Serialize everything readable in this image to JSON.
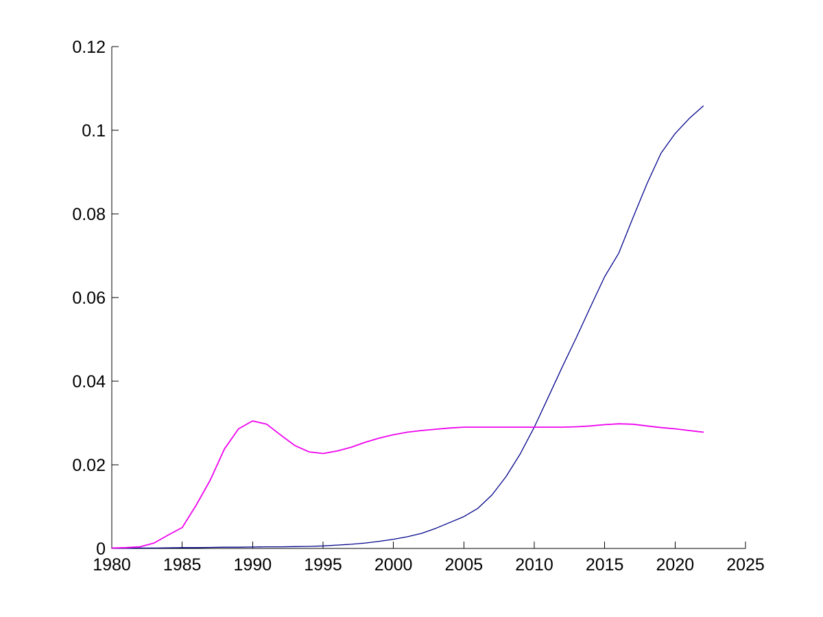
{
  "figure": {
    "background": "#ffffff",
    "axis_color": "#000000",
    "title": ""
  },
  "chart_data": {
    "type": "line",
    "title": "",
    "xlabel": "",
    "ylabel": "",
    "xlim": [
      1980,
      2025
    ],
    "ylim": [
      0,
      0.12
    ],
    "grid": false,
    "legend": "none",
    "x_ticks": [
      1980,
      1985,
      1990,
      1995,
      2000,
      2005,
      2010,
      2015,
      2020,
      2025
    ],
    "x_tick_labels": [
      "1980",
      "1985",
      "1990",
      "1995",
      "2000",
      "2005",
      "2010",
      "2015",
      "2020",
      "2025"
    ],
    "y_ticks": [
      0,
      0.02,
      0.04,
      0.06,
      0.08,
      0.1,
      0.12
    ],
    "y_tick_labels": [
      "0",
      "0.02",
      "0.04",
      "0.06",
      "0.08",
      "0.1",
      "0.12"
    ],
    "x": [
      1980,
      1981,
      1982,
      1983,
      1984,
      1985,
      1986,
      1987,
      1988,
      1989,
      1990,
      1991,
      1992,
      1993,
      1994,
      1995,
      1996,
      1997,
      1998,
      1999,
      2000,
      2001,
      2002,
      2003,
      2004,
      2005,
      2006,
      2007,
      2008,
      2009,
      2010,
      2011,
      2012,
      2013,
      2014,
      2015,
      2016,
      2017,
      2018,
      2019,
      2020,
      2021,
      2022
    ],
    "series": [
      {
        "name": "dark-blue-series",
        "color": "#00008B",
        "stroke_width": 1.3,
        "values": [
          5e-05,
          5e-05,
          0.0001,
          0.0001,
          0.00015,
          0.0002,
          0.0002,
          0.00025,
          0.0003,
          0.0003,
          0.00035,
          0.0004,
          0.0004,
          0.00045,
          0.0005,
          0.0006,
          0.0008,
          0.001,
          0.0013,
          0.0017,
          0.0022,
          0.0028,
          0.0036,
          0.0048,
          0.0062,
          0.0076,
          0.0096,
          0.0128,
          0.0172,
          0.0226,
          0.029,
          0.0362,
          0.0435,
          0.0505,
          0.0578,
          0.065,
          0.0706,
          0.079,
          0.0872,
          0.0945,
          0.0992,
          0.1028,
          0.1058
        ]
      },
      {
        "name": "magenta-series",
        "color": "#EE00EE",
        "stroke_width": 1.8,
        "values": [
          0.0001,
          0.0002,
          0.0004,
          0.0013,
          0.0032,
          0.005,
          0.0104,
          0.0164,
          0.0238,
          0.0286,
          0.0305,
          0.0297,
          0.0271,
          0.0246,
          0.0231,
          0.0227,
          0.0233,
          0.0242,
          0.0254,
          0.0264,
          0.0272,
          0.0278,
          0.0282,
          0.0285,
          0.0288,
          0.029,
          0.029,
          0.029,
          0.029,
          0.029,
          0.029,
          0.029,
          0.029,
          0.0291,
          0.0293,
          0.0296,
          0.0298,
          0.0297,
          0.0293,
          0.0289,
          0.0286,
          0.0282,
          0.0278
        ]
      }
    ]
  }
}
